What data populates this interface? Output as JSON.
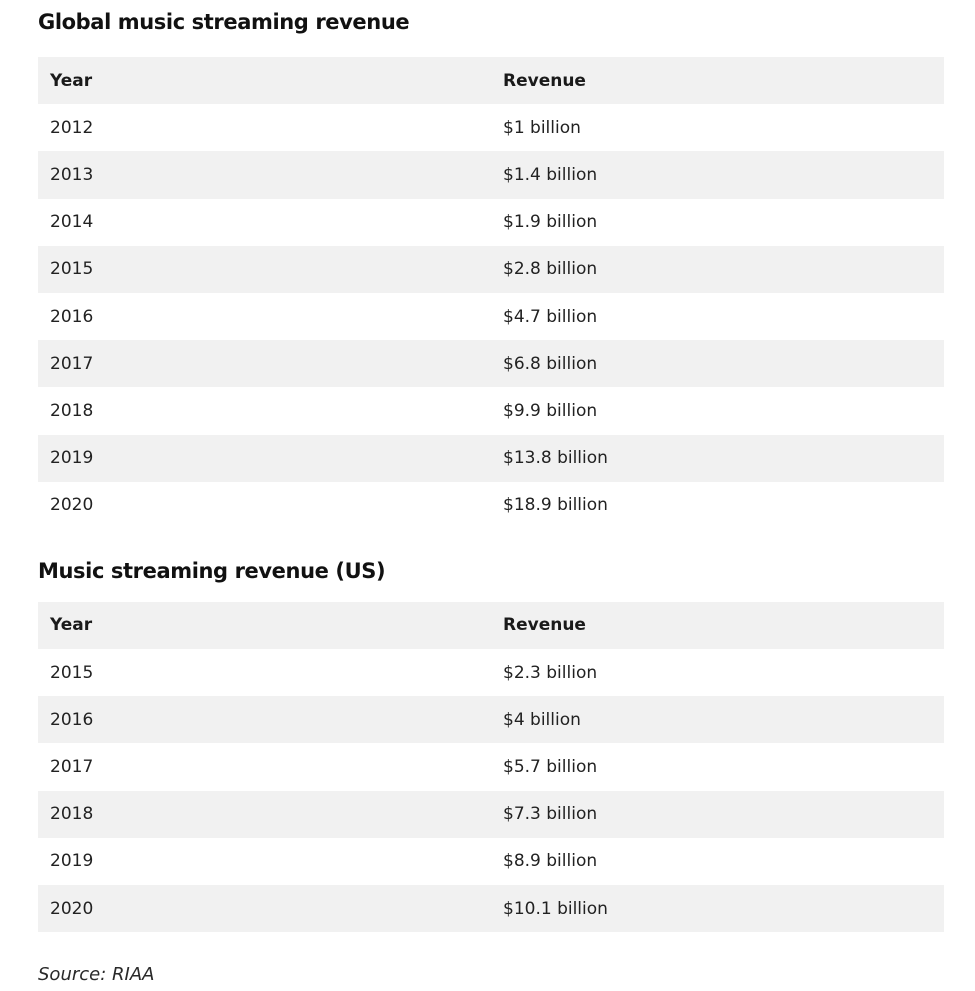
{
  "global": {
    "title": "Global music streaming revenue",
    "headers": {
      "year": "Year",
      "revenue": "Revenue"
    },
    "rows": [
      {
        "year": "2012",
        "revenue": "$1 billion"
      },
      {
        "year": "2013",
        "revenue": "$1.4 billion"
      },
      {
        "year": "2014",
        "revenue": "$1.9 billion"
      },
      {
        "year": "2015",
        "revenue": "$2.8 billion"
      },
      {
        "year": "2016",
        "revenue": "$4.7 billion"
      },
      {
        "year": "2017",
        "revenue": "$6.8 billion"
      },
      {
        "year": "2018",
        "revenue": "$9.9 billion"
      },
      {
        "year": "2019",
        "revenue": "$13.8 billion"
      },
      {
        "year": "2020",
        "revenue": "$18.9 billion"
      }
    ]
  },
  "us": {
    "title": "Music streaming revenue (US)",
    "headers": {
      "year": "Year",
      "revenue": "Revenue"
    },
    "rows": [
      {
        "year": "2015",
        "revenue": "$2.3 billion"
      },
      {
        "year": "2016",
        "revenue": "$4 billion"
      },
      {
        "year": "2017",
        "revenue": "$5.7 billion"
      },
      {
        "year": "2018",
        "revenue": "$7.3 billion"
      },
      {
        "year": "2019",
        "revenue": "$8.9 billion"
      },
      {
        "year": "2020",
        "revenue": "$10.1 billion"
      }
    ]
  },
  "source": "Source: RIAA",
  "colors": {
    "row_shade": "#f1f1f1",
    "text": "#222222"
  }
}
